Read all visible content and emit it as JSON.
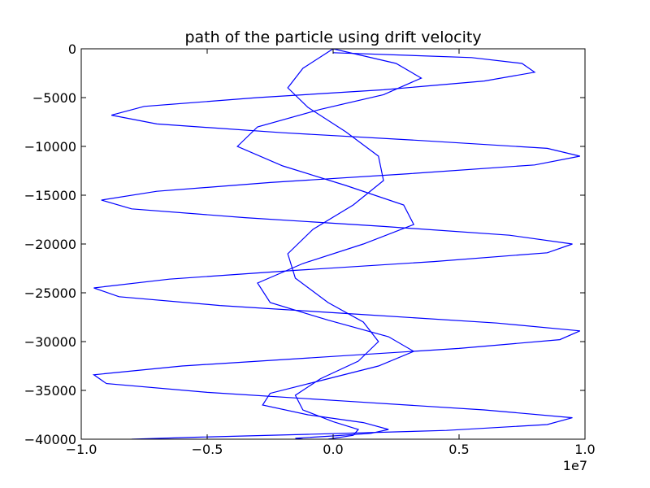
{
  "chart_data": {
    "type": "line",
    "title": "path of the particle using drift velocity",
    "xlabel": "",
    "ylabel": "",
    "x_offset_label": "1e7",
    "xlim": [
      -1.0,
      1.0
    ],
    "ylim": [
      -40000,
      0
    ],
    "x_ticks": [
      -1.0,
      -0.5,
      0.0,
      0.5,
      1.0
    ],
    "x_tick_labels": [
      "−1.0",
      "−0.5",
      "0.0",
      "0.5",
      "1.0"
    ],
    "y_ticks": [
      0,
      -5000,
      -10000,
      -15000,
      -20000,
      -25000,
      -30000,
      -35000,
      -40000
    ],
    "y_tick_labels": [
      "0",
      "−5000",
      "−10000",
      "−15000",
      "−20000",
      "−25000",
      "−30000",
      "−35000",
      "−40000"
    ],
    "grid": false,
    "legend": "none",
    "line_color": "#0000ff",
    "series": [
      {
        "note_x_units": "x values in units of 1e7",
        "x": [
          0.0,
          0.55,
          0.75,
          0.8,
          0.6,
          0.2,
          -0.3,
          -0.75,
          -0.88,
          -0.7,
          -0.2,
          0.35,
          0.85,
          0.98,
          0.8,
          0.3,
          -0.25,
          -0.7,
          -0.92,
          -0.8,
          -0.35,
          0.2,
          0.7,
          0.95,
          0.85,
          0.4,
          -0.15,
          -0.65,
          -0.95,
          -0.85,
          -0.45,
          0.1,
          0.65,
          0.98,
          0.9,
          0.5,
          -0.05,
          -0.6,
          -0.95,
          -0.9,
          -0.5,
          0.05,
          0.6,
          0.95,
          0.85,
          0.45,
          -0.1,
          -0.55,
          -0.8
        ],
        "y": [
          -400,
          -900,
          -1500,
          -2400,
          -3300,
          -4200,
          -5000,
          -5900,
          -6800,
          -7700,
          -8600,
          -9400,
          -10200,
          -11000,
          -11900,
          -12800,
          -13700,
          -14600,
          -15500,
          -16400,
          -17300,
          -18200,
          -19100,
          -20000,
          -20900,
          -21800,
          -22700,
          -23600,
          -24500,
          -25400,
          -26300,
          -27200,
          -28100,
          -28900,
          -29800,
          -30700,
          -31600,
          -32500,
          -33400,
          -34300,
          -35200,
          -36100,
          -37000,
          -37800,
          -38500,
          -39100,
          -39500,
          -39800,
          -40000
        ]
      },
      {
        "x": [
          0.0,
          0.25,
          0.35,
          0.2,
          -0.05,
          -0.3,
          -0.38,
          -0.2,
          0.05,
          0.28,
          0.32,
          0.12,
          -0.12,
          -0.3,
          -0.25,
          -0.02,
          0.22,
          0.32,
          0.18,
          -0.05,
          -0.25,
          -0.28,
          -0.1,
          0.12,
          0.22,
          0.15,
          -0.02,
          -0.15,
          -0.12
        ],
        "y": [
          0,
          -1500,
          -3000,
          -4700,
          -6200,
          -8000,
          -10000,
          -12000,
          -14000,
          -16000,
          -18000,
          -20000,
          -22000,
          -24000,
          -26000,
          -27800,
          -29500,
          -31000,
          -32500,
          -34000,
          -35300,
          -36500,
          -37500,
          -38300,
          -39000,
          -39400,
          -39700,
          -39900,
          -40000
        ]
      },
      {
        "x": [
          0.0,
          -0.12,
          -0.18,
          -0.1,
          0.05,
          0.18,
          0.2,
          0.08,
          -0.08,
          -0.18,
          -0.15,
          -0.02,
          0.12,
          0.18,
          0.1,
          -0.05,
          -0.15,
          -0.12,
          0.0,
          0.1,
          0.08,
          -0.02
        ],
        "y": [
          0,
          -2000,
          -4000,
          -6000,
          -8500,
          -11000,
          -13500,
          -16000,
          -18500,
          -21000,
          -23500,
          -26000,
          -28000,
          -30000,
          -32000,
          -33800,
          -35500,
          -37000,
          -38200,
          -39000,
          -39600,
          -40000
        ]
      }
    ]
  }
}
